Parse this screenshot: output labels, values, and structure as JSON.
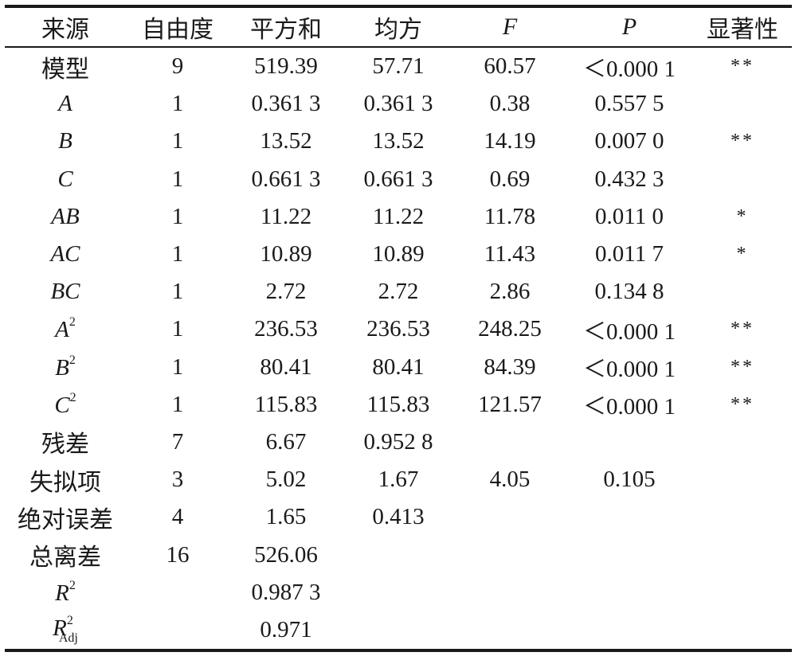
{
  "header": [
    "来源",
    "自由度",
    "平方和",
    "均方",
    "F",
    "P",
    "显著性"
  ],
  "rows": [
    {
      "source": "模型",
      "df": "9",
      "ss": "519.39",
      "ms": "57.71",
      "f": "60.57",
      "p": "＜0.000 1",
      "sig": "**"
    },
    {
      "source": "A",
      "df": "1",
      "ss": "0.361 3",
      "ms": "0.361 3",
      "f": "0.38",
      "p": "0.557 5",
      "sig": ""
    },
    {
      "source": "B",
      "df": "1",
      "ss": "13.52",
      "ms": "13.52",
      "f": "14.19",
      "p": "0.007 0",
      "sig": "**"
    },
    {
      "source": "C",
      "df": "1",
      "ss": "0.661 3",
      "ms": "0.661 3",
      "f": "0.69",
      "p": "0.432 3",
      "sig": ""
    },
    {
      "source": "AB",
      "df": "1",
      "ss": "11.22",
      "ms": "11.22",
      "f": "11.78",
      "p": "0.011 0",
      "sig": "*"
    },
    {
      "source": "AC",
      "df": "1",
      "ss": "10.89",
      "ms": "10.89",
      "f": "11.43",
      "p": "0.011 7",
      "sig": "*"
    },
    {
      "source": "BC",
      "df": "1",
      "ss": "2.72",
      "ms": "2.72",
      "f": "2.86",
      "p": "0.134 8",
      "sig": ""
    },
    {
      "source": "A",
      "source_sup": "2",
      "df": "1",
      "ss": "236.53",
      "ms": "236.53",
      "f": "248.25",
      "p": "＜0.000 1",
      "sig": "**"
    },
    {
      "source": "B",
      "source_sup": "2",
      "df": "1",
      "ss": "80.41",
      "ms": "80.41",
      "f": "84.39",
      "p": "＜0.000 1",
      "sig": "**"
    },
    {
      "source": "C",
      "source_sup": "2",
      "df": "1",
      "ss": "115.83",
      "ms": "115.83",
      "f": "121.57",
      "p": "＜0.000 1",
      "sig": "**"
    },
    {
      "source": "残差",
      "df": "7",
      "ss": "6.67",
      "ms": "0.952 8",
      "f": "",
      "p": "",
      "sig": ""
    },
    {
      "source": "失拟项",
      "df": "3",
      "ss": "5.02",
      "ms": "1.67",
      "f": "4.05",
      "p": "0.105",
      "sig": ""
    },
    {
      "source": "绝对误差",
      "df": "4",
      "ss": "1.65",
      "ms": "0.413",
      "f": "",
      "p": "",
      "sig": ""
    },
    {
      "source": "总离差",
      "df": "16",
      "ss": "526.06",
      "ms": "",
      "f": "",
      "p": "",
      "sig": ""
    },
    {
      "source": "R",
      "source_sup": "2",
      "df": "",
      "ss": "0.987 3",
      "ms": "",
      "f": "",
      "p": "",
      "sig": ""
    },
    {
      "source": "R",
      "source_sup": "2",
      "source_sub": "Adj",
      "df": "",
      "ss": "0.971",
      "ms": "",
      "f": "",
      "p": "",
      "sig": ""
    }
  ]
}
